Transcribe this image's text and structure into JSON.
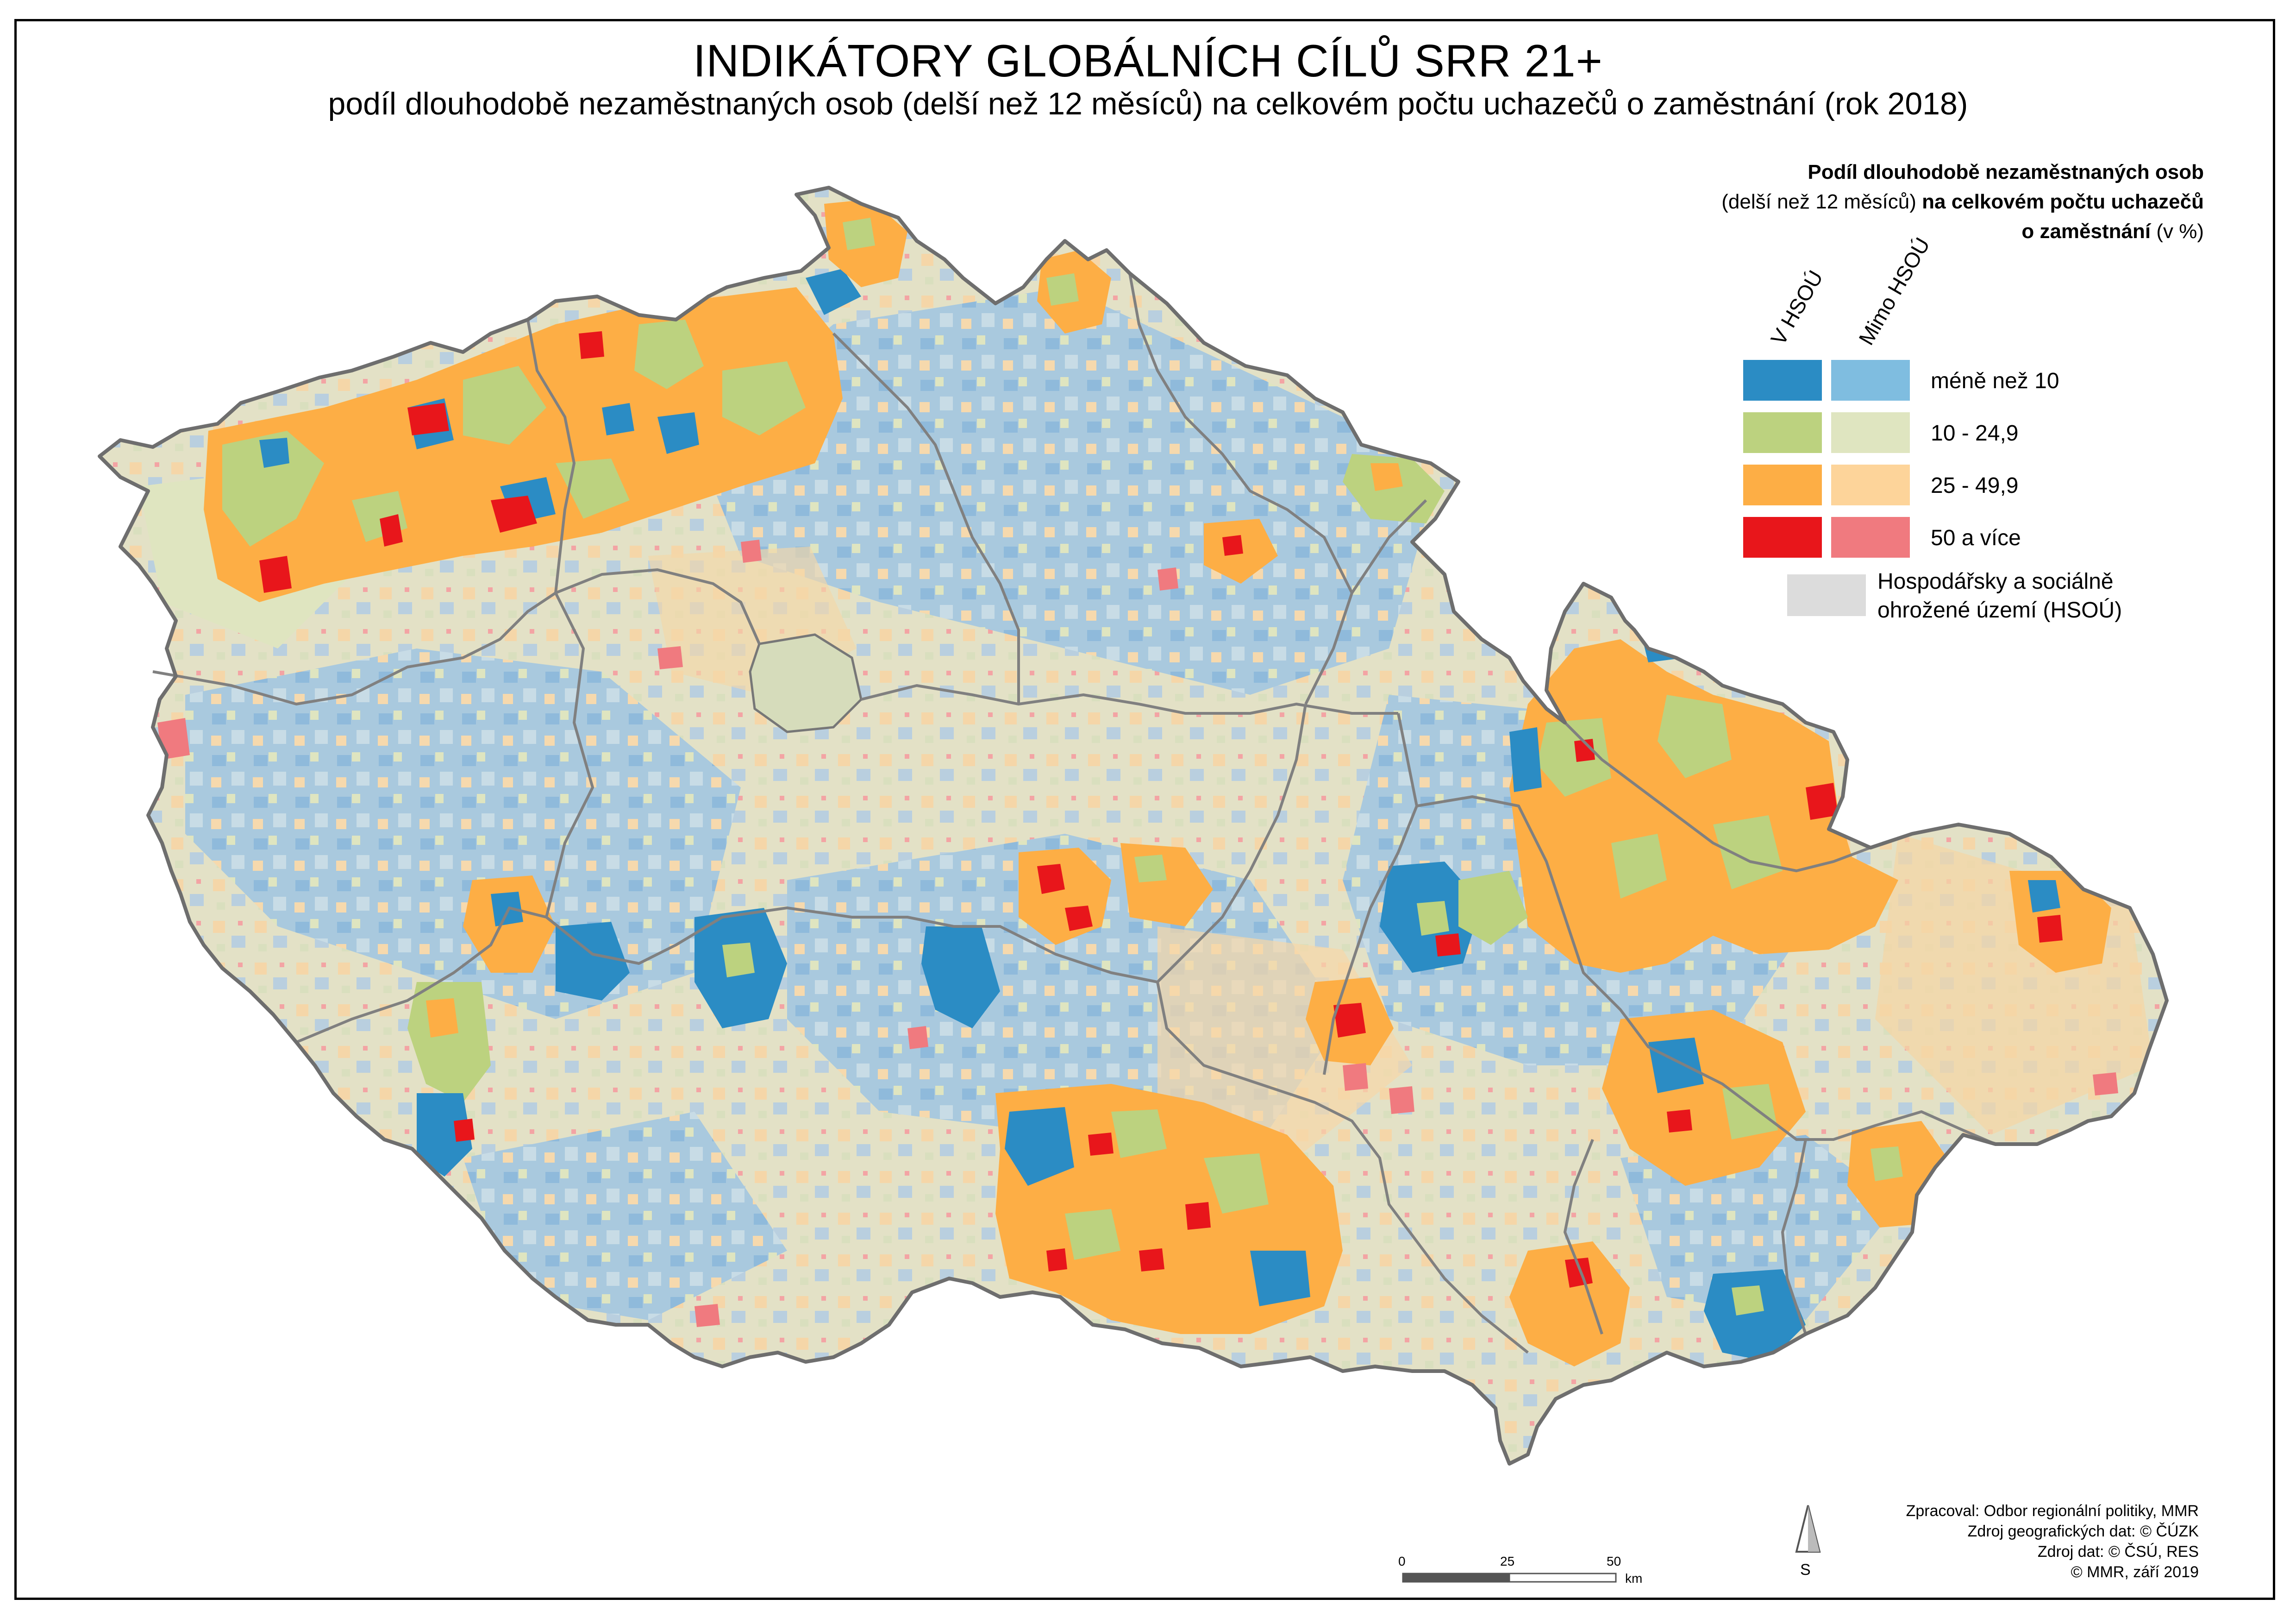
{
  "title": "INDIKÁTORY GLOBÁLNÍCH CÍLŮ SRR 21+",
  "subtitle": "podíl dlouhodobě nezaměstnaných osob (delší než 12 měsíců) na celkovém počtu uchazečů o zaměstnání (rok 2018)",
  "legend": {
    "title_bold_1": "Podíl dlouhodobě nezaměstnaných osob",
    "title_normal_2": "(delší než 12 měsíců)",
    "title_bold_2": "na celkovém počtu uchazečů",
    "title_bold_3": "o zaměstnání",
    "title_normal_3": "(v %)",
    "col_in": "V HSOÚ",
    "col_out": "Mimo HSOÚ",
    "classes": [
      {
        "label": "méně než 10",
        "in_color": "#2b8cc4",
        "out_color": "#7fbde0"
      },
      {
        "label": "10 - 24,9",
        "in_color": "#bcd27f",
        "out_color": "#dfe5c0"
      },
      {
        "label": "25 - 49,9",
        "in_color": "#fdae45",
        "out_color": "#fdd49a"
      },
      {
        "label": "50 a více",
        "in_color": "#e8161b",
        "out_color": "#f07a7f"
      }
    ],
    "hsou_label_1": "Hospodářsky a sociálně",
    "hsou_label_2": "ohrožené území (HSOÚ)",
    "hsou_color": "#dcdcdc"
  },
  "scale": {
    "t0": "0",
    "t25": "25",
    "t50": "50",
    "unit": "km"
  },
  "north_label": "S",
  "sources": {
    "line1": "Zpracoval: Odbor regionální politiky, MMR",
    "line2": "Zdroj geografických dat: © ČÚZK",
    "line3": "Zdroj dat: © ČSÚ, RES",
    "line4": "© MMR, září 2019"
  }
}
